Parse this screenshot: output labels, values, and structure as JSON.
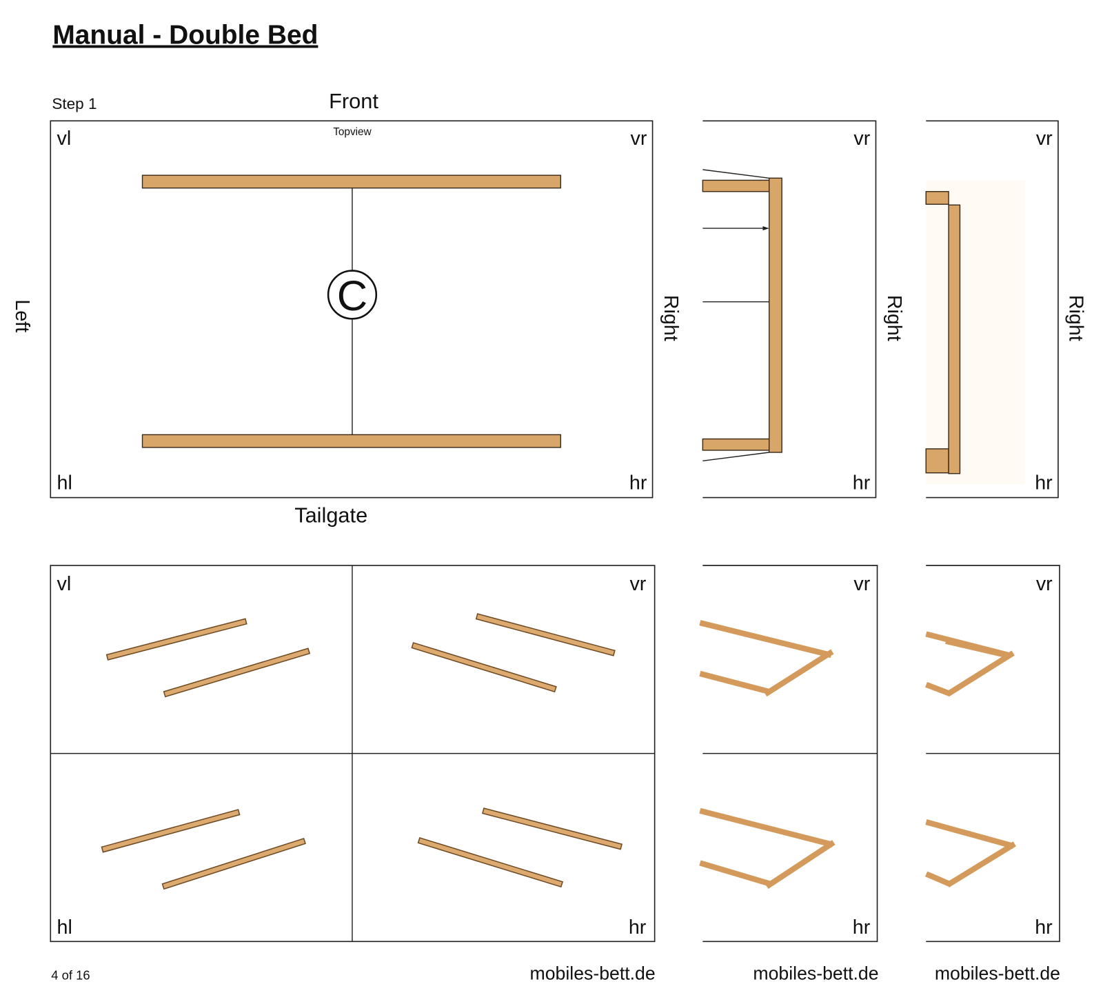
{
  "header": {
    "title": "Manual - Double Bed"
  },
  "step": "Step 1",
  "topview": {
    "front": "Front",
    "caption": "Topview",
    "left": "Left",
    "tailgate": "Tailgate",
    "part": "C",
    "corners": [
      "vl",
      "vr",
      "hl",
      "hr"
    ]
  },
  "side_views": [
    {
      "side": "Right",
      "corners": [
        "vr",
        "hr"
      ]
    },
    {
      "side": "Right",
      "corners": [
        "vr",
        "hr"
      ]
    }
  ],
  "third_side": "Right",
  "perspective": {
    "corners": [
      "vl",
      "vr",
      "hl",
      "hr"
    ]
  },
  "side_perspectives": [
    {
      "corners": [
        "vr",
        "hr"
      ]
    },
    {
      "corners": [
        "vr",
        "hr"
      ]
    }
  ],
  "footer": {
    "page": "4 of 16",
    "sites": [
      "mobiles-bett.de",
      "mobiles-bett.de",
      "mobiles-bett.de"
    ]
  }
}
